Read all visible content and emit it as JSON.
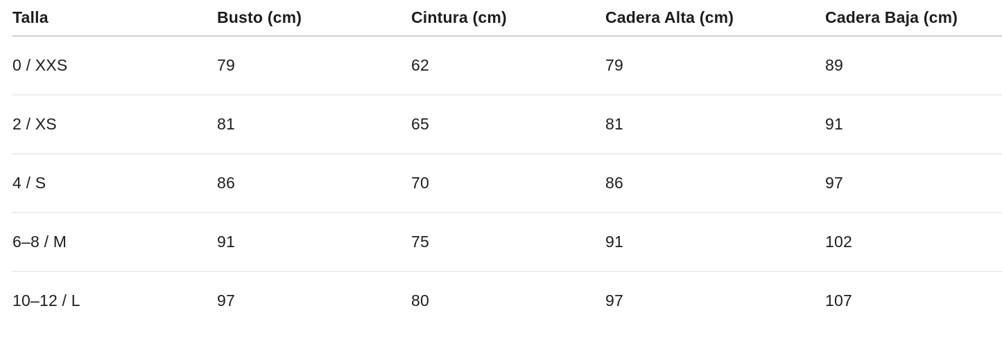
{
  "size_chart": {
    "columns": [
      "Talla",
      "Busto (cm)",
      "Cintura (cm)",
      "Cadera Alta (cm)",
      "Cadera Baja (cm)"
    ],
    "rows": [
      [
        "0 / XXS",
        "79",
        "62",
        "79",
        "89"
      ],
      [
        "2 / XS",
        "81",
        "65",
        "81",
        "91"
      ],
      [
        "4 / S",
        "86",
        "70",
        "86",
        "97"
      ],
      [
        "6–8 / M",
        "91",
        "75",
        "91",
        "102"
      ],
      [
        "10–12 / L",
        "97",
        "80",
        "97",
        "107"
      ]
    ]
  },
  "colors": {
    "text": "#1d1d1d",
    "header_divider": "#d0d0d0",
    "row_divider": "#ededed",
    "background": "#ffffff"
  }
}
